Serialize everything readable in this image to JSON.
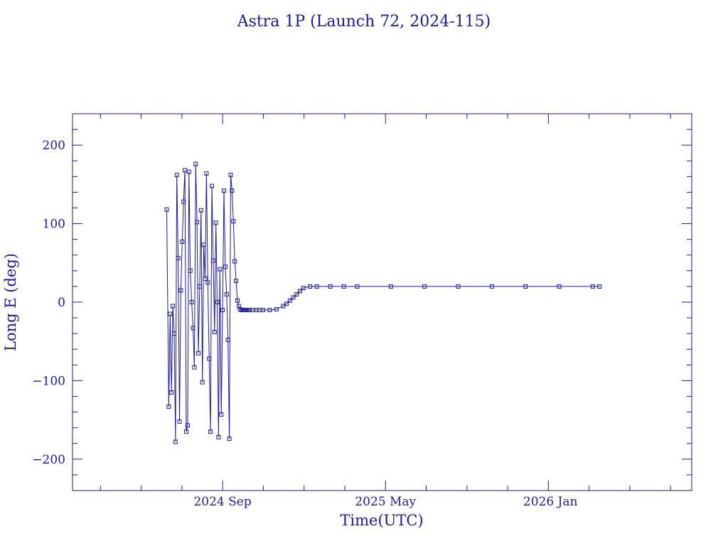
{
  "chart_data": {
    "type": "line",
    "title": "Astra 1P (Launch 72, 2024-115)",
    "xlabel": "Time(UTC)",
    "ylabel": "Long E (deg)",
    "x_tick_labels": [
      "2024 Sep",
      "2025 May",
      "2026 Jan"
    ],
    "y_tick_labels": [
      "200",
      "100",
      "0",
      "−100",
      "−200"
    ],
    "y_ticks": [
      200,
      100,
      0,
      -100,
      -200
    ],
    "ylim": [
      -240,
      240
    ],
    "x_unit": "days since 2024 Sep 1",
    "x_ticks": [
      0,
      242,
      487
    ],
    "xlim": [
      -223,
      697
    ],
    "grid": false,
    "legend": "none",
    "color": "#1a1aa8",
    "series": [
      {
        "x": [
          -83,
          -80,
          -78,
          -76,
          -74,
          -72,
          -70,
          -68,
          -66,
          -64,
          -62,
          -60,
          -58,
          -56,
          -54,
          -52,
          -50,
          -48,
          -46,
          -44,
          -42,
          -40,
          -38,
          -36,
          -34,
          -32,
          -30,
          -28,
          -26,
          -24,
          -22,
          -20,
          -18,
          -16,
          -14,
          -12,
          -10,
          -8,
          -6,
          -4,
          -2,
          0,
          2,
          4,
          6,
          8,
          10,
          12,
          14,
          16,
          18,
          20,
          22,
          24,
          26,
          28,
          30,
          32,
          34,
          36,
          38,
          40,
          45,
          50,
          55,
          60,
          70,
          80,
          90,
          95,
          100,
          105,
          110,
          115,
          120,
          130,
          140,
          160,
          180,
          200,
          250,
          300,
          350,
          400,
          450,
          500,
          550,
          560
        ],
        "y": [
          118,
          -133,
          -15,
          -115,
          -5,
          -40,
          -178,
          162,
          56,
          -152,
          15,
          77,
          128,
          168,
          -165,
          -157,
          166,
          40,
          0,
          -33,
          -83,
          176,
          102,
          -65,
          20,
          117,
          -102,
          73,
          30,
          164,
          25,
          -72,
          -165,
          148,
          53,
          -38,
          101,
          0,
          -172,
          42,
          -143,
          -10,
          142,
          45,
          10,
          -48,
          -174,
          162,
          142,
          103,
          52,
          27,
          2,
          -5,
          -9,
          -10,
          -10,
          -10,
          -10,
          -10,
          -10,
          -10,
          -10,
          -10,
          -10,
          -10,
          -10,
          -9,
          -5,
          -2,
          2,
          6,
          10,
          14,
          18,
          20,
          20,
          20,
          20,
          20,
          20,
          20,
          20,
          20,
          20,
          20,
          20,
          20
        ]
      }
    ]
  }
}
